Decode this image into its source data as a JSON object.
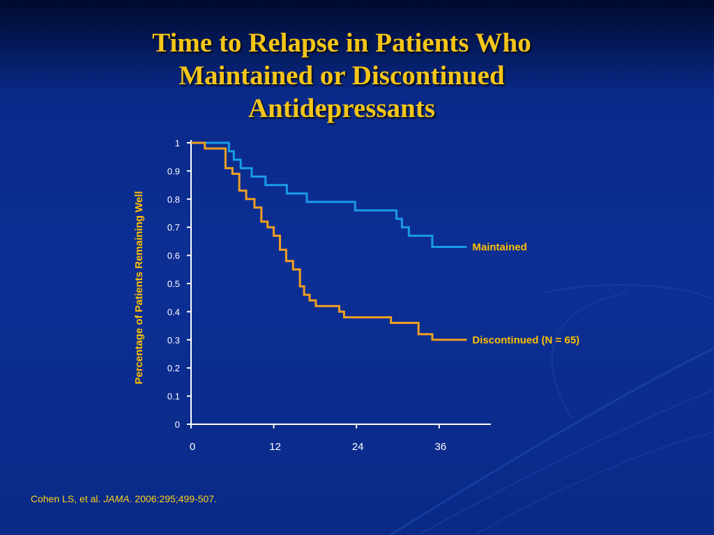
{
  "title": "Time to Relapse in Patients Who Maintained or Discontinued Antidepressants",
  "citation": {
    "authors": "Cohen LS, et al.",
    "journal": "JAMA",
    "details": "2006:295;499-507."
  },
  "colors": {
    "title": "#f5c518",
    "maintained": "#1a9be8",
    "discontinued": "#f0a020",
    "axis": "#ffffff",
    "axis_label": "#ffc000"
  },
  "chart_data": {
    "type": "line",
    "step": true,
    "title": "",
    "xlabel": "",
    "ylabel": "Percentage of Patients Remaining Well",
    "xlim": [
      0,
      44
    ],
    "ylim": [
      0,
      1
    ],
    "x_ticks": [
      0,
      12,
      24,
      36
    ],
    "y_ticks": [
      0,
      0.1,
      0.2,
      0.3,
      0.4,
      0.5,
      0.6,
      0.7,
      0.8,
      0.9,
      1
    ],
    "y_tick_labels": [
      "0",
      "0.1",
      "0.2",
      "0.3",
      "0.4",
      "0.5",
      "0.6",
      "0.7",
      "0.8",
      "0.9",
      "1"
    ],
    "x_tick_labels": [
      "0",
      "12",
      "24",
      "36"
    ],
    "series": [
      {
        "name": "Maintained",
        "color": "#1a9be8",
        "x": [
          0,
          5,
          5.5,
          6.2,
          7.2,
          8.8,
          10.8,
          13.9,
          16.8,
          20.9,
          23.8,
          29.8,
          30.6,
          31.6,
          35
        ],
        "y": [
          1,
          1,
          0.97,
          0.94,
          0.91,
          0.88,
          0.85,
          0.82,
          0.79,
          0.79,
          0.76,
          0.73,
          0.7,
          0.67,
          0.63
        ],
        "x_end": 40
      },
      {
        "name": "Discontinued (N = 65)",
        "color": "#f0a020",
        "x": [
          0,
          2,
          5,
          6,
          7,
          8,
          9.2,
          10.2,
          11.1,
          12,
          12.9,
          13.8,
          14.8,
          15.8,
          16.4,
          17.2,
          18.1,
          19.6,
          21.5,
          22.2,
          29,
          33,
          35
        ],
        "y": [
          1,
          0.98,
          0.91,
          0.89,
          0.83,
          0.8,
          0.77,
          0.72,
          0.7,
          0.67,
          0.62,
          0.58,
          0.55,
          0.49,
          0.46,
          0.44,
          0.42,
          0.42,
          0.4,
          0.38,
          0.36,
          0.32,
          0.3
        ],
        "x_end": 40
      }
    ]
  }
}
